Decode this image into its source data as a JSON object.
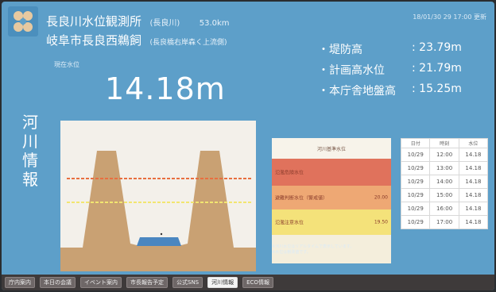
{
  "station": {
    "name": "長良川水位観測所",
    "river": "(長良川)",
    "distance": "53.0km",
    "location": "岐阜市長良西鵜飼",
    "location_note": "(長良橋右岸森く上流側)"
  },
  "timestamp": "18/01/30 29 17:00 更新",
  "current": {
    "label": "現在水位",
    "value": "14.18m"
  },
  "stats": [
    {
      "label": "・堤防高",
      "value": ": 23.79m"
    },
    {
      "label": "・計画高水位",
      "value": ": 21.79m"
    },
    {
      "label": "・本庁舎地盤高",
      "value": ": 15.25m"
    }
  ],
  "vertical_title": [
    "河",
    "川",
    "情",
    "報"
  ],
  "legend": {
    "header": "河川基準水位",
    "bands": [
      {
        "label": "氾濫危険水位",
        "right": "",
        "color": "#e0725c"
      },
      {
        "label": "避難判断水位（警戒値）",
        "right": "20.00",
        "color": "#eea874"
      },
      {
        "label": "氾濫注意水位",
        "right": "19.50",
        "color": "#f4e27a"
      }
    ],
    "footer_1": "※河川水位はリアルタイムで表示しています。",
    "footer_2": "※水位は観測値です。"
  },
  "history": {
    "columns": [
      "日付",
      "時刻",
      "水位"
    ],
    "rows": [
      [
        "10/29",
        "12:00",
        "14.18"
      ],
      [
        "10/29",
        "13:00",
        "14.18"
      ],
      [
        "10/29",
        "14:00",
        "14.18"
      ],
      [
        "10/29",
        "15:00",
        "14.18"
      ],
      [
        "10/29",
        "16:00",
        "14.18"
      ],
      [
        "10/29",
        "17:00",
        "14.18"
      ]
    ]
  },
  "nav": [
    {
      "label": "庁内案内",
      "active": false
    },
    {
      "label": "本日の会議",
      "active": false
    },
    {
      "label": "イベント案内",
      "active": false
    },
    {
      "label": "市長報告予定",
      "active": false
    },
    {
      "label": "公式SNS",
      "active": false
    },
    {
      "label": "河川情報",
      "active": true
    },
    {
      "label": "ECO情報",
      "active": false
    }
  ],
  "colors": {
    "background": "#5d9fc9",
    "levee": "#c9a173",
    "water": "#4a86c0",
    "danger_line": "#e86f40",
    "caution_line": "#f2e670"
  },
  "icons": {
    "logo": "city-emblem-icon"
  }
}
